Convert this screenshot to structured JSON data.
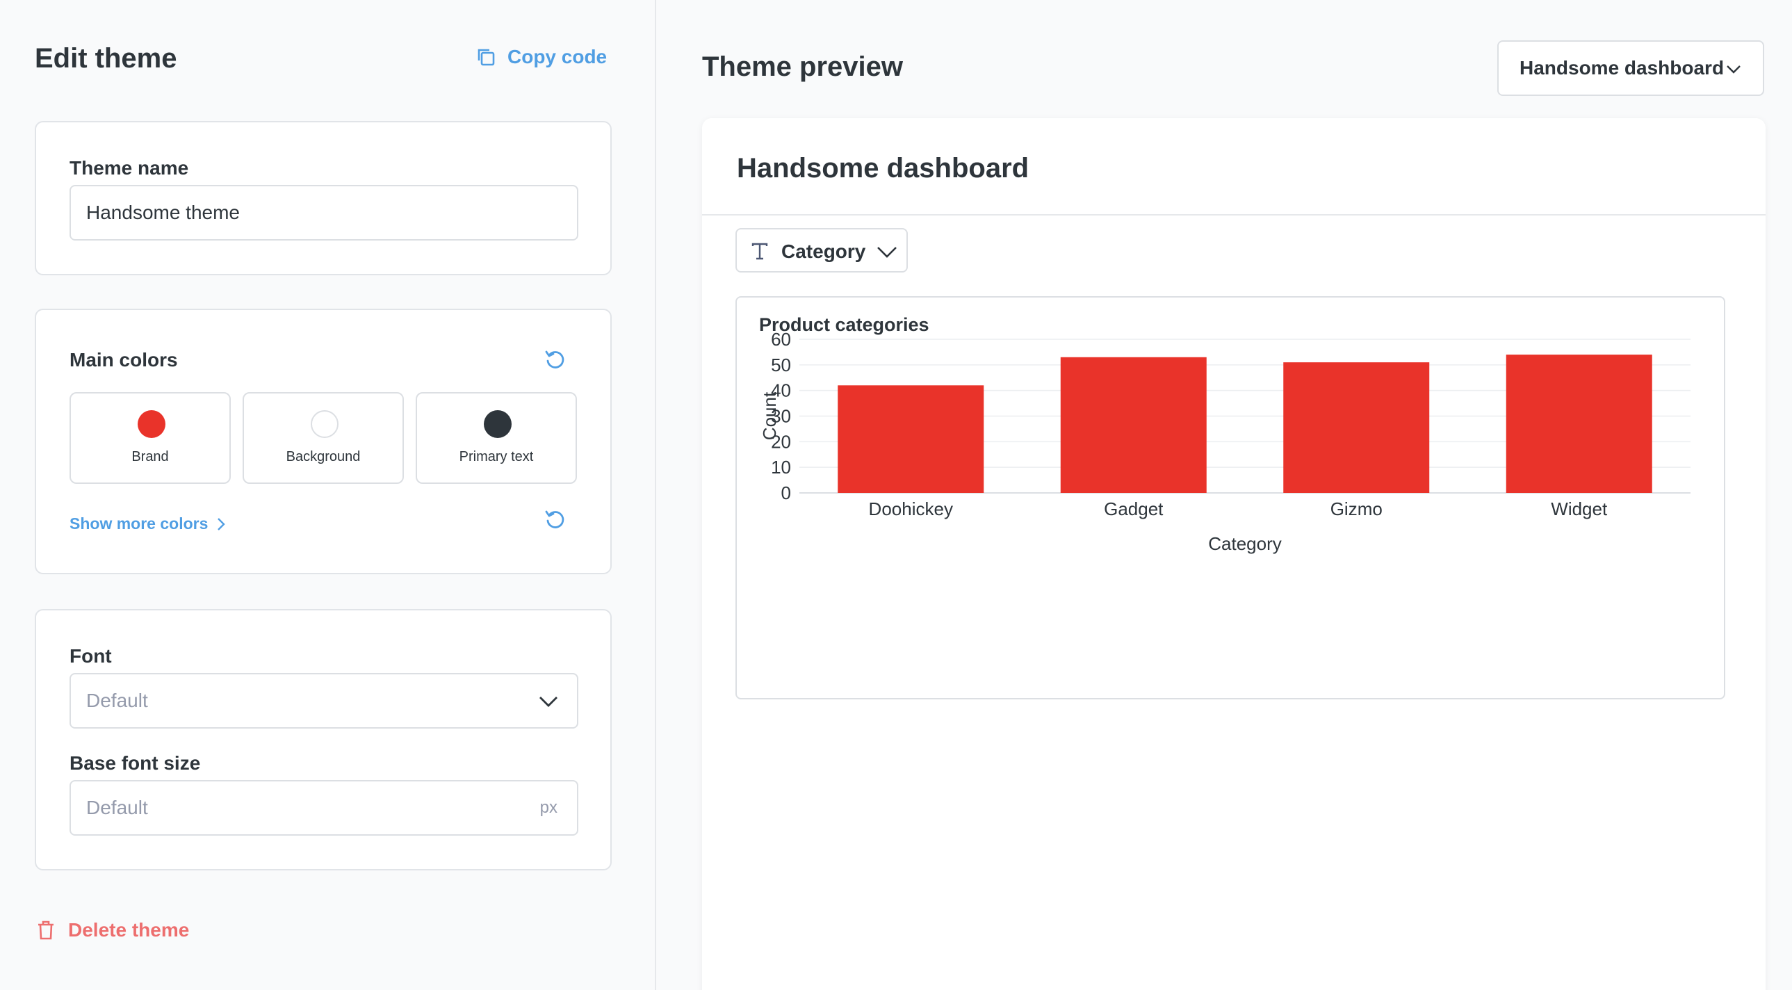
{
  "edit_panel": {
    "title": "Edit theme",
    "copy_code_label": "Copy code",
    "theme_name": {
      "label": "Theme name",
      "value": "Handsome theme"
    },
    "main_colors": {
      "label": "Main colors",
      "swatches": [
        {
          "label": "Brand",
          "color": "#e9332a"
        },
        {
          "label": "Background",
          "color": "#ffffff"
        },
        {
          "label": "Primary text",
          "color": "#2e353b"
        }
      ],
      "show_more_label": "Show more colors"
    },
    "font": {
      "label": "Font",
      "placeholder": "Default"
    },
    "base_font_size": {
      "label": "Base font size",
      "placeholder": "Default",
      "unit": "px"
    },
    "delete_label": "Delete theme"
  },
  "preview_panel": {
    "title": "Theme preview",
    "dashboard_select": "Handsome dashboard",
    "dashboard_name": "Handsome dashboard",
    "filter_label": "Category"
  },
  "colors": {
    "accent": "#509ee3",
    "brand": "#e9332a",
    "danger": "#ed6e6e",
    "text": "#2e353b"
  },
  "chart_data": {
    "type": "bar",
    "title": "Product categories",
    "categories": [
      "Doohickey",
      "Gadget",
      "Gizmo",
      "Widget"
    ],
    "values": [
      42,
      53,
      51,
      54
    ],
    "xlabel": "Category",
    "ylabel": "Count",
    "ylim": [
      0,
      60
    ],
    "yticks": [
      0,
      10,
      20,
      30,
      40,
      50,
      60
    ],
    "grid": true,
    "color": "#e9332a"
  }
}
